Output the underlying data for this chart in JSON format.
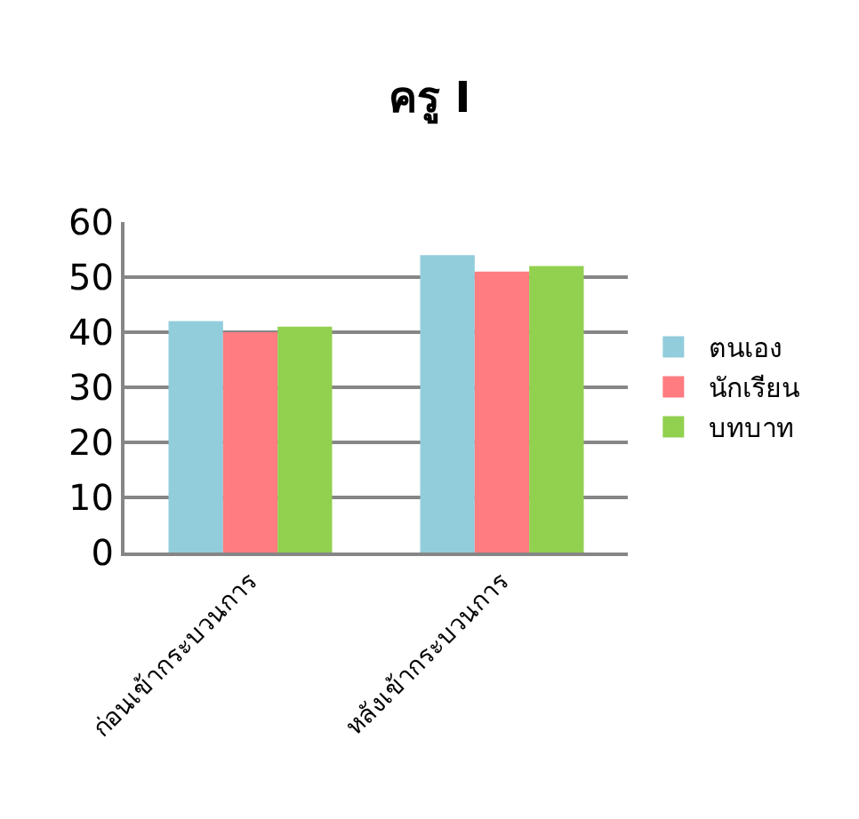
{
  "chart_data": {
    "type": "bar",
    "title": "ครู I",
    "categories": [
      "ก่อนเข้ากระบวนการ",
      "หลังเข้ากระบวนการ"
    ],
    "series": [
      {
        "name": "ตนเอง",
        "color": "#92cddc",
        "values": [
          42,
          54
        ]
      },
      {
        "name": "นักเรียน",
        "color": "#ff7c80",
        "values": [
          40,
          51
        ]
      },
      {
        "name": "บทบาท",
        "color": "#92d050",
        "values": [
          41,
          52
        ]
      }
    ],
    "ylim": [
      0,
      60
    ],
    "yticks": [
      0,
      10,
      20,
      30,
      40,
      50,
      60
    ],
    "grid": "y",
    "legend": "right"
  }
}
